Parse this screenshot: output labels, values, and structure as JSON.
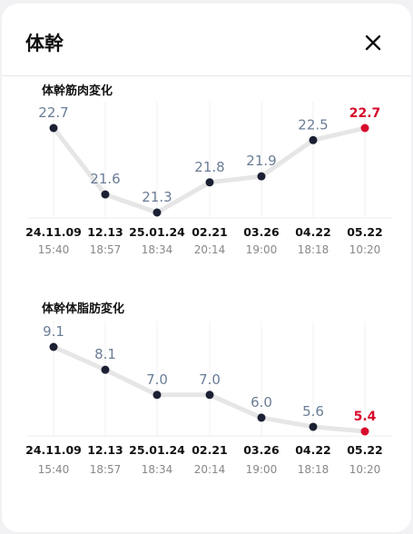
{
  "header": {
    "title": "体幹",
    "close_icon": "close-icon"
  },
  "colors": {
    "point": "#1b2033",
    "latest": "#d7092c",
    "value_label": "#6b7d96",
    "line": "#e6e6e6"
  },
  "chart_data": [
    {
      "type": "line",
      "title": "体幹筋肉変化",
      "x": [
        {
          "date": "24.11.09",
          "time": "15:40"
        },
        {
          "date": "12.13",
          "time": "18:57"
        },
        {
          "date": "25.01.24",
          "time": "18:34"
        },
        {
          "date": "02.21",
          "time": "20:14"
        },
        {
          "date": "03.26",
          "time": "19:00"
        },
        {
          "date": "04.22",
          "time": "18:18"
        },
        {
          "date": "05.22",
          "time": "10:20"
        }
      ],
      "values": [
        22.7,
        21.6,
        21.3,
        21.8,
        21.9,
        22.5,
        22.7
      ],
      "value_labels": [
        "22.7",
        "21.6",
        "21.3",
        "21.8",
        "21.9",
        "22.5",
        "22.7"
      ],
      "highlight_last": true,
      "grid": "vertical"
    },
    {
      "type": "line",
      "title": "体幹体脂肪変化",
      "x": [
        {
          "date": "24.11.09",
          "time": "15:40"
        },
        {
          "date": "12.13",
          "time": "18:57"
        },
        {
          "date": "25.01.24",
          "time": "18:34"
        },
        {
          "date": "02.21",
          "time": "20:14"
        },
        {
          "date": "03.26",
          "time": "19:00"
        },
        {
          "date": "04.22",
          "time": "18:18"
        },
        {
          "date": "05.22",
          "time": "10:20"
        }
      ],
      "values": [
        9.1,
        8.1,
        7.0,
        7.0,
        6.0,
        5.6,
        5.4
      ],
      "value_labels": [
        "9.1",
        "8.1",
        "7.0",
        "7.0",
        "6.0",
        "5.6",
        "5.4"
      ],
      "highlight_last": true,
      "grid": "vertical"
    }
  ]
}
